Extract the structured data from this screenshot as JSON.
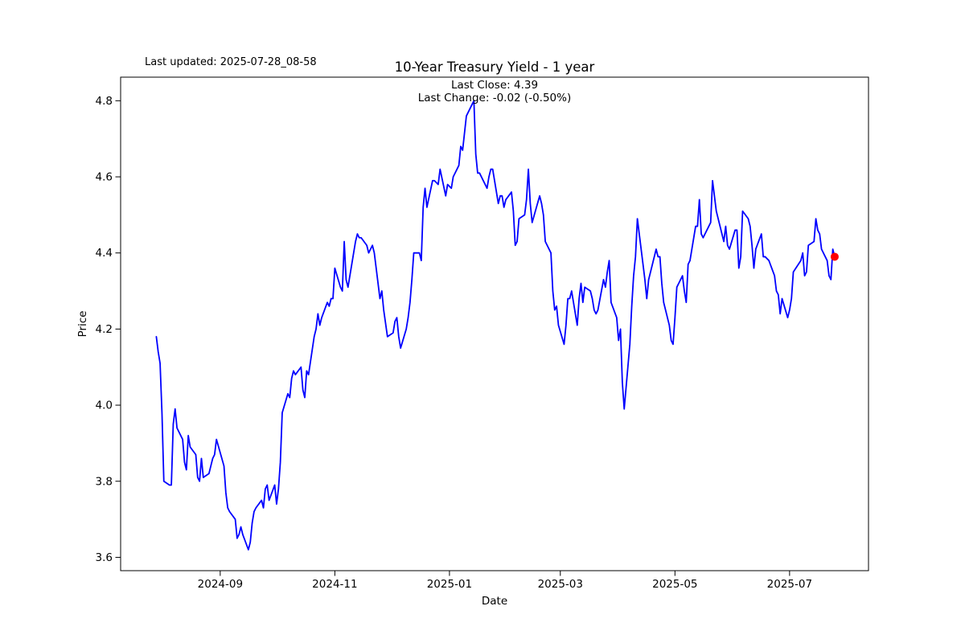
{
  "header": {
    "last_updated": "Last updated: 2025-07-28_08-58",
    "title": "10-Year Treasury Yield - 1 year",
    "subtitle_line1": "Last Close: 4.39",
    "subtitle_line2": "Last Change: -0.02 (-0.50%)"
  },
  "chart_data": {
    "type": "line",
    "title": "10-Year Treasury Yield - 1 year",
    "xlabel": "Date",
    "ylabel": "Price",
    "last_close": 4.39,
    "last_change": "-0.02 (-0.50%)",
    "line_color": "#0000ff",
    "marker_color": "#ff0000",
    "grid": false,
    "legend": null,
    "ylim": [
      3.565,
      4.862
    ],
    "xlim": [
      "2024-07-10",
      "2025-08-12"
    ],
    "yticks": [
      3.6,
      3.8,
      4.0,
      4.2,
      4.4,
      4.6,
      4.8
    ],
    "xticks": [
      {
        "date": "2024-09-01",
        "label": "2024-09"
      },
      {
        "date": "2024-11-01",
        "label": "2024-11"
      },
      {
        "date": "2025-01-01",
        "label": "2025-01"
      },
      {
        "date": "2025-03-01",
        "label": "2025-03"
      },
      {
        "date": "2025-05-01",
        "label": "2025-05"
      },
      {
        "date": "2025-07-01",
        "label": "2025-07"
      }
    ],
    "points": [
      [
        "2024-07-29",
        4.18
      ],
      [
        "2024-07-30",
        4.14
      ],
      [
        "2024-07-31",
        4.11
      ],
      [
        "2024-08-01",
        3.98
      ],
      [
        "2024-08-02",
        3.8
      ],
      [
        "2024-08-05",
        3.79
      ],
      [
        "2024-08-06",
        3.79
      ],
      [
        "2024-08-07",
        3.95
      ],
      [
        "2024-08-08",
        3.99
      ],
      [
        "2024-08-09",
        3.94
      ],
      [
        "2024-08-12",
        3.91
      ],
      [
        "2024-08-13",
        3.85
      ],
      [
        "2024-08-14",
        3.83
      ],
      [
        "2024-08-15",
        3.92
      ],
      [
        "2024-08-16",
        3.89
      ],
      [
        "2024-08-19",
        3.87
      ],
      [
        "2024-08-20",
        3.81
      ],
      [
        "2024-08-21",
        3.8
      ],
      [
        "2024-08-22",
        3.86
      ],
      [
        "2024-08-23",
        3.81
      ],
      [
        "2024-08-26",
        3.82
      ],
      [
        "2024-08-27",
        3.84
      ],
      [
        "2024-08-28",
        3.86
      ],
      [
        "2024-08-29",
        3.87
      ],
      [
        "2024-08-30",
        3.91
      ],
      [
        "2024-09-03",
        3.84
      ],
      [
        "2024-09-04",
        3.77
      ],
      [
        "2024-09-05",
        3.73
      ],
      [
        "2024-09-06",
        3.72
      ],
      [
        "2024-09-09",
        3.7
      ],
      [
        "2024-09-10",
        3.65
      ],
      [
        "2024-09-11",
        3.66
      ],
      [
        "2024-09-12",
        3.68
      ],
      [
        "2024-09-13",
        3.66
      ],
      [
        "2024-09-16",
        3.62
      ],
      [
        "2024-09-17",
        3.64
      ],
      [
        "2024-09-18",
        3.69
      ],
      [
        "2024-09-19",
        3.72
      ],
      [
        "2024-09-20",
        3.73
      ],
      [
        "2024-09-23",
        3.75
      ],
      [
        "2024-09-24",
        3.73
      ],
      [
        "2024-09-25",
        3.78
      ],
      [
        "2024-09-26",
        3.79
      ],
      [
        "2024-09-27",
        3.75
      ],
      [
        "2024-09-30",
        3.79
      ],
      [
        "2024-10-01",
        3.74
      ],
      [
        "2024-10-02",
        3.78
      ],
      [
        "2024-10-03",
        3.85
      ],
      [
        "2024-10-04",
        3.98
      ],
      [
        "2024-10-07",
        4.03
      ],
      [
        "2024-10-08",
        4.02
      ],
      [
        "2024-10-09",
        4.07
      ],
      [
        "2024-10-10",
        4.09
      ],
      [
        "2024-10-11",
        4.08
      ],
      [
        "2024-10-14",
        4.1
      ],
      [
        "2024-10-15",
        4.04
      ],
      [
        "2024-10-16",
        4.02
      ],
      [
        "2024-10-17",
        4.09
      ],
      [
        "2024-10-18",
        4.08
      ],
      [
        "2024-10-21",
        4.18
      ],
      [
        "2024-10-22",
        4.2
      ],
      [
        "2024-10-23",
        4.24
      ],
      [
        "2024-10-24",
        4.21
      ],
      [
        "2024-10-25",
        4.23
      ],
      [
        "2024-10-28",
        4.27
      ],
      [
        "2024-10-29",
        4.26
      ],
      [
        "2024-10-30",
        4.28
      ],
      [
        "2024-10-31",
        4.28
      ],
      [
        "2024-11-01",
        4.36
      ],
      [
        "2024-11-04",
        4.31
      ],
      [
        "2024-11-05",
        4.3
      ],
      [
        "2024-11-06",
        4.43
      ],
      [
        "2024-11-07",
        4.33
      ],
      [
        "2024-11-08",
        4.31
      ],
      [
        "2024-11-12",
        4.43
      ],
      [
        "2024-11-13",
        4.45
      ],
      [
        "2024-11-14",
        4.44
      ],
      [
        "2024-11-15",
        4.44
      ],
      [
        "2024-11-18",
        4.42
      ],
      [
        "2024-11-19",
        4.4
      ],
      [
        "2024-11-20",
        4.41
      ],
      [
        "2024-11-21",
        4.42
      ],
      [
        "2024-11-22",
        4.4
      ],
      [
        "2024-11-25",
        4.28
      ],
      [
        "2024-11-26",
        4.3
      ],
      [
        "2024-11-27",
        4.25
      ],
      [
        "2024-11-29",
        4.18
      ],
      [
        "2024-12-02",
        4.19
      ],
      [
        "2024-12-03",
        4.22
      ],
      [
        "2024-12-04",
        4.23
      ],
      [
        "2024-12-05",
        4.18
      ],
      [
        "2024-12-06",
        4.15
      ],
      [
        "2024-12-09",
        4.2
      ],
      [
        "2024-12-10",
        4.23
      ],
      [
        "2024-12-11",
        4.27
      ],
      [
        "2024-12-12",
        4.33
      ],
      [
        "2024-12-13",
        4.4
      ],
      [
        "2024-12-16",
        4.4
      ],
      [
        "2024-12-17",
        4.38
      ],
      [
        "2024-12-18",
        4.52
      ],
      [
        "2024-12-19",
        4.57
      ],
      [
        "2024-12-20",
        4.52
      ],
      [
        "2024-12-23",
        4.59
      ],
      [
        "2024-12-24",
        4.59
      ],
      [
        "2024-12-26",
        4.58
      ],
      [
        "2024-12-27",
        4.62
      ],
      [
        "2024-12-30",
        4.55
      ],
      [
        "2024-12-31",
        4.58
      ],
      [
        "2025-01-02",
        4.57
      ],
      [
        "2025-01-03",
        4.6
      ],
      [
        "2025-01-06",
        4.63
      ],
      [
        "2025-01-07",
        4.68
      ],
      [
        "2025-01-08",
        4.67
      ],
      [
        "2025-01-10",
        4.76
      ],
      [
        "2025-01-13",
        4.79
      ],
      [
        "2025-01-14",
        4.8
      ],
      [
        "2025-01-15",
        4.66
      ],
      [
        "2025-01-16",
        4.61
      ],
      [
        "2025-01-17",
        4.61
      ],
      [
        "2025-01-21",
        4.57
      ],
      [
        "2025-01-22",
        4.6
      ],
      [
        "2025-01-23",
        4.62
      ],
      [
        "2025-01-24",
        4.62
      ],
      [
        "2025-01-27",
        4.53
      ],
      [
        "2025-01-28",
        4.55
      ],
      [
        "2025-01-29",
        4.55
      ],
      [
        "2025-01-30",
        4.52
      ],
      [
        "2025-01-31",
        4.54
      ],
      [
        "2025-02-03",
        4.56
      ],
      [
        "2025-02-04",
        4.51
      ],
      [
        "2025-02-05",
        4.42
      ],
      [
        "2025-02-06",
        4.43
      ],
      [
        "2025-02-07",
        4.49
      ],
      [
        "2025-02-10",
        4.5
      ],
      [
        "2025-02-11",
        4.54
      ],
      [
        "2025-02-12",
        4.62
      ],
      [
        "2025-02-13",
        4.53
      ],
      [
        "2025-02-14",
        4.48
      ],
      [
        "2025-02-18",
        4.55
      ],
      [
        "2025-02-19",
        4.53
      ],
      [
        "2025-02-20",
        4.5
      ],
      [
        "2025-02-21",
        4.43
      ],
      [
        "2025-02-24",
        4.4
      ],
      [
        "2025-02-25",
        4.3
      ],
      [
        "2025-02-26",
        4.25
      ],
      [
        "2025-02-27",
        4.26
      ],
      [
        "2025-02-28",
        4.21
      ],
      [
        "2025-03-03",
        4.16
      ],
      [
        "2025-03-04",
        4.21
      ],
      [
        "2025-03-05",
        4.28
      ],
      [
        "2025-03-06",
        4.28
      ],
      [
        "2025-03-07",
        4.3
      ],
      [
        "2025-03-10",
        4.21
      ],
      [
        "2025-03-11",
        4.28
      ],
      [
        "2025-03-12",
        4.32
      ],
      [
        "2025-03-13",
        4.27
      ],
      [
        "2025-03-14",
        4.31
      ],
      [
        "2025-03-17",
        4.3
      ],
      [
        "2025-03-18",
        4.28
      ],
      [
        "2025-03-19",
        4.25
      ],
      [
        "2025-03-20",
        4.24
      ],
      [
        "2025-03-21",
        4.25
      ],
      [
        "2025-03-24",
        4.33
      ],
      [
        "2025-03-25",
        4.31
      ],
      [
        "2025-03-26",
        4.35
      ],
      [
        "2025-03-27",
        4.38
      ],
      [
        "2025-03-28",
        4.27
      ],
      [
        "2025-03-31",
        4.23
      ],
      [
        "2025-04-01",
        4.17
      ],
      [
        "2025-04-02",
        4.2
      ],
      [
        "2025-04-03",
        4.06
      ],
      [
        "2025-04-04",
        3.99
      ],
      [
        "2025-04-07",
        4.16
      ],
      [
        "2025-04-08",
        4.26
      ],
      [
        "2025-04-09",
        4.34
      ],
      [
        "2025-04-10",
        4.39
      ],
      [
        "2025-04-11",
        4.49
      ],
      [
        "2025-04-14",
        4.37
      ],
      [
        "2025-04-15",
        4.33
      ],
      [
        "2025-04-16",
        4.28
      ],
      [
        "2025-04-17",
        4.33
      ],
      [
        "2025-04-21",
        4.41
      ],
      [
        "2025-04-22",
        4.39
      ],
      [
        "2025-04-23",
        4.39
      ],
      [
        "2025-04-24",
        4.32
      ],
      [
        "2025-04-25",
        4.27
      ],
      [
        "2025-04-28",
        4.21
      ],
      [
        "2025-04-29",
        4.17
      ],
      [
        "2025-04-30",
        4.16
      ],
      [
        "2025-05-01",
        4.23
      ],
      [
        "2025-05-02",
        4.31
      ],
      [
        "2025-05-05",
        4.34
      ],
      [
        "2025-05-06",
        4.3
      ],
      [
        "2025-05-07",
        4.27
      ],
      [
        "2025-05-08",
        4.37
      ],
      [
        "2025-05-09",
        4.38
      ],
      [
        "2025-05-12",
        4.47
      ],
      [
        "2025-05-13",
        4.47
      ],
      [
        "2025-05-14",
        4.54
      ],
      [
        "2025-05-15",
        4.45
      ],
      [
        "2025-05-16",
        4.44
      ],
      [
        "2025-05-19",
        4.47
      ],
      [
        "2025-05-20",
        4.48
      ],
      [
        "2025-05-21",
        4.59
      ],
      [
        "2025-05-22",
        4.55
      ],
      [
        "2025-05-23",
        4.51
      ],
      [
        "2025-05-27",
        4.43
      ],
      [
        "2025-05-28",
        4.47
      ],
      [
        "2025-05-29",
        4.42
      ],
      [
        "2025-05-30",
        4.41
      ],
      [
        "2025-06-02",
        4.46
      ],
      [
        "2025-06-03",
        4.46
      ],
      [
        "2025-06-04",
        4.36
      ],
      [
        "2025-06-05",
        4.39
      ],
      [
        "2025-06-06",
        4.51
      ],
      [
        "2025-06-09",
        4.49
      ],
      [
        "2025-06-10",
        4.47
      ],
      [
        "2025-06-11",
        4.42
      ],
      [
        "2025-06-12",
        4.36
      ],
      [
        "2025-06-13",
        4.41
      ],
      [
        "2025-06-16",
        4.45
      ],
      [
        "2025-06-17",
        4.39
      ],
      [
        "2025-06-18",
        4.39
      ],
      [
        "2025-06-20",
        4.38
      ],
      [
        "2025-06-23",
        4.34
      ],
      [
        "2025-06-24",
        4.3
      ],
      [
        "2025-06-25",
        4.29
      ],
      [
        "2025-06-26",
        4.24
      ],
      [
        "2025-06-27",
        4.28
      ],
      [
        "2025-06-30",
        4.23
      ],
      [
        "2025-07-01",
        4.25
      ],
      [
        "2025-07-02",
        4.28
      ],
      [
        "2025-07-03",
        4.35
      ],
      [
        "2025-07-07",
        4.38
      ],
      [
        "2025-07-08",
        4.4
      ],
      [
        "2025-07-09",
        4.34
      ],
      [
        "2025-07-10",
        4.35
      ],
      [
        "2025-07-11",
        4.42
      ],
      [
        "2025-07-14",
        4.43
      ],
      [
        "2025-07-15",
        4.49
      ],
      [
        "2025-07-16",
        4.46
      ],
      [
        "2025-07-17",
        4.45
      ],
      [
        "2025-07-18",
        4.41
      ],
      [
        "2025-07-21",
        4.38
      ],
      [
        "2025-07-22",
        4.34
      ],
      [
        "2025-07-23",
        4.33
      ],
      [
        "2025-07-24",
        4.41
      ],
      [
        "2025-07-25",
        4.39
      ]
    ]
  }
}
